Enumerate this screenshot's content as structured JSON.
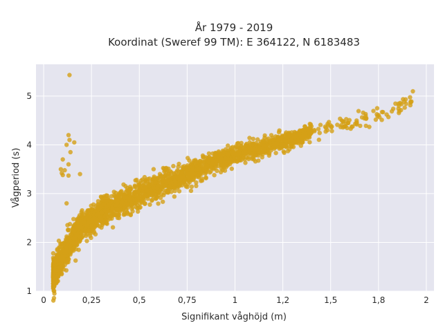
{
  "chart_data": {
    "type": "scatter",
    "title_line1": "År 1979 - 2019",
    "title_line2": "Koordinat (Sweref 99 TM): E 364122, N 6183483",
    "xlabel": "Signifikant våghöjd (m)",
    "ylabel": "Vågperiod (s)",
    "xlim": [
      -0.04,
      2.04
    ],
    "ylim": [
      1.0,
      5.65
    ],
    "x_ticks": [
      0,
      0.25,
      0.5,
      0.75,
      1,
      1.25,
      1.5,
      1.75,
      2
    ],
    "x_tick_labels": [
      "0",
      "0,25",
      "0,5",
      "0,75",
      "1",
      "1,2",
      "1,5",
      "1,8",
      "2"
    ],
    "y_ticks": [
      1,
      2,
      3,
      4,
      5
    ],
    "y_tick_labels": [
      "1",
      "2",
      "3",
      "4",
      "5"
    ],
    "grid": true,
    "marker_color": "#D4A017",
    "plot_background": "#E5E5EF",
    "series_main_trend": [
      [
        0.05,
        1.35
      ],
      [
        0.1,
        1.7
      ],
      [
        0.15,
        2.05
      ],
      [
        0.2,
        2.3
      ],
      [
        0.3,
        2.6
      ],
      [
        0.4,
        2.8
      ],
      [
        0.5,
        2.98
      ],
      [
        0.6,
        3.15
      ],
      [
        0.75,
        3.4
      ],
      [
        0.9,
        3.65
      ],
      [
        1.0,
        3.8
      ],
      [
        1.2,
        4.0
      ],
      [
        1.4,
        4.25
      ],
      [
        1.6,
        4.45
      ],
      [
        1.8,
        4.7
      ],
      [
        1.93,
        4.95
      ]
    ],
    "outliers": [
      [
        0.135,
        5.43
      ],
      [
        0.13,
        4.2
      ],
      [
        0.135,
        4.1
      ],
      [
        0.12,
        4.0
      ],
      [
        0.16,
        4.05
      ],
      [
        0.14,
        3.85
      ],
      [
        0.1,
        3.7
      ],
      [
        0.13,
        3.6
      ],
      [
        0.09,
        3.5
      ],
      [
        0.11,
        3.48
      ],
      [
        0.1,
        3.38
      ],
      [
        0.13,
        3.37
      ],
      [
        0.095,
        3.42
      ],
      [
        0.19,
        3.4
      ],
      [
        0.12,
        2.8
      ]
    ]
  }
}
